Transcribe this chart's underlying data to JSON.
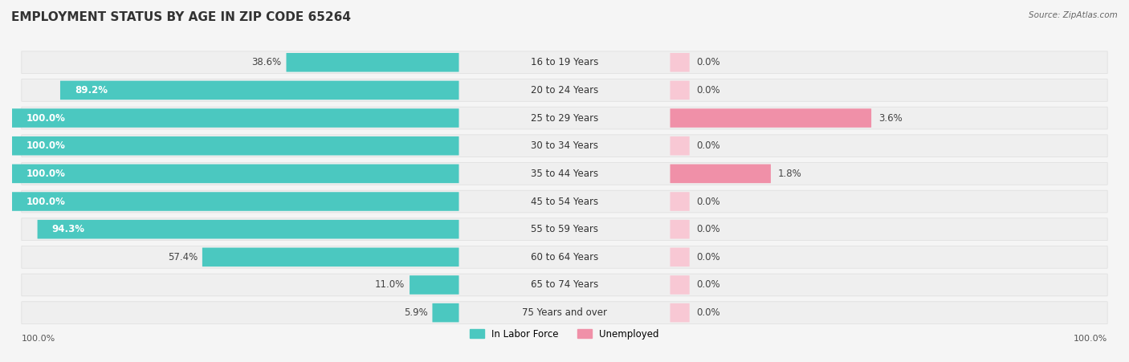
{
  "title": "EMPLOYMENT STATUS BY AGE IN ZIP CODE 65264",
  "source": "Source: ZipAtlas.com",
  "age_groups": [
    "16 to 19 Years",
    "20 to 24 Years",
    "25 to 29 Years",
    "30 to 34 Years",
    "35 to 44 Years",
    "45 to 54 Years",
    "55 to 59 Years",
    "60 to 64 Years",
    "65 to 74 Years",
    "75 Years and over"
  ],
  "in_labor_force": [
    38.6,
    89.2,
    100.0,
    100.0,
    100.0,
    100.0,
    94.3,
    57.4,
    11.0,
    5.9
  ],
  "unemployed": [
    0.0,
    0.0,
    3.6,
    0.0,
    1.8,
    0.0,
    0.0,
    0.0,
    0.0,
    0.0
  ],
  "labor_color": "#4BC8C0",
  "unemployed_color": "#F090A8",
  "labor_color_light": "#A8E0DC",
  "unemployed_color_light": "#F8C8D4",
  "row_bg_color": "#F0F0F0",
  "bar_bg_color": "#FFFFFF",
  "title_fontsize": 11,
  "label_fontsize": 8.5,
  "axis_label_left": "100.0%",
  "axis_label_right": "100.0%",
  "legend_labor": "In Labor Force",
  "legend_unemployed": "Unemployed"
}
